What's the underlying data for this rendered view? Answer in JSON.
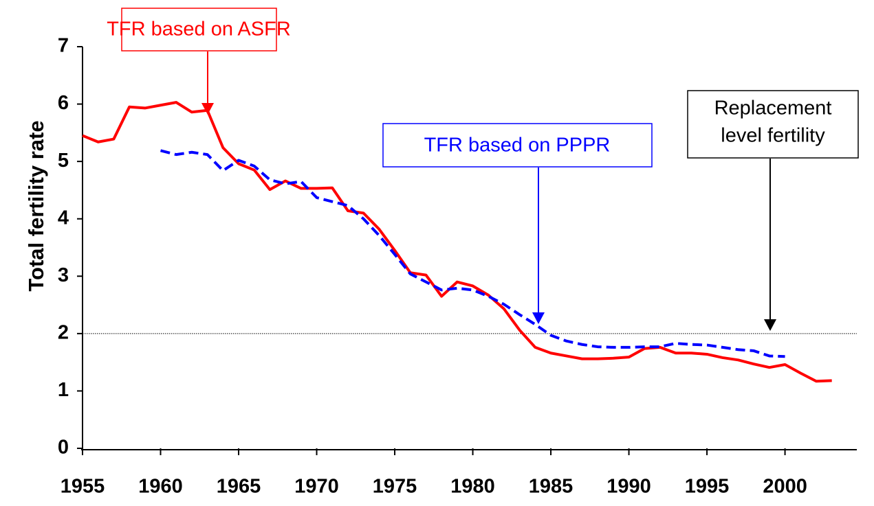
{
  "chart_data": {
    "type": "line",
    "y_label": "Total fertility rate",
    "xlim": [
      1955,
      2004.6
    ],
    "xticks": [
      1955,
      1960,
      1965,
      1970,
      1975,
      1980,
      1985,
      1990,
      1995,
      2000
    ],
    "ylim": [
      0,
      7
    ],
    "yticks": [
      0,
      1,
      2,
      3,
      4,
      5,
      6,
      7
    ],
    "reference_line": 2,
    "series": [
      {
        "color": "#ff0000",
        "dash": false,
        "x": [
          1955,
          1956,
          1957,
          1958,
          1959,
          1960,
          1961,
          1962,
          1963,
          1964,
          1965,
          1966,
          1967,
          1968,
          1969,
          1970,
          1971,
          1972,
          1973,
          1974,
          1975,
          1976,
          1977,
          1978,
          1979,
          1980,
          1981,
          1982,
          1983,
          1984,
          1985,
          1986,
          1987,
          1988,
          1989,
          1990,
          1991,
          1992,
          1993,
          1994,
          1995,
          1996,
          1997,
          1998,
          1999,
          2000,
          2001,
          2002,
          2003
        ],
        "values": [
          5.45,
          5.34,
          5.39,
          5.95,
          5.93,
          5.98,
          6.03,
          5.86,
          5.89,
          5.24,
          4.96,
          4.85,
          4.51,
          4.66,
          4.53,
          4.53,
          4.54,
          4.14,
          4.1,
          3.82,
          3.45,
          3.06,
          3.02,
          2.65,
          2.9,
          2.83,
          2.67,
          2.43,
          2.06,
          1.76,
          1.66,
          1.61,
          1.56,
          1.56,
          1.57,
          1.59,
          1.74,
          1.76,
          1.66,
          1.66,
          1.64,
          1.58,
          1.54,
          1.47,
          1.41,
          1.46,
          1.31,
          1.17,
          1.18
        ]
      },
      {
        "color": "#0000ff",
        "dash": true,
        "x": [
          1960,
          1961,
          1962,
          1963,
          1964,
          1965,
          1966,
          1967,
          1968,
          1969,
          1970,
          1971,
          1972,
          1973,
          1974,
          1975,
          1976,
          1977,
          1978,
          1979,
          1980,
          1981,
          1982,
          1983,
          1984,
          1985,
          1986,
          1987,
          1988,
          1989,
          1990,
          1991,
          1992,
          1993,
          1994,
          1995,
          1996,
          1997,
          1998,
          1999,
          2000
        ],
        "values": [
          5.19,
          5.12,
          5.16,
          5.12,
          4.84,
          5.02,
          4.92,
          4.68,
          4.61,
          4.65,
          4.37,
          4.3,
          4.23,
          4.0,
          3.71,
          3.38,
          3.04,
          2.9,
          2.76,
          2.79,
          2.76,
          2.65,
          2.51,
          2.33,
          2.16,
          1.97,
          1.87,
          1.81,
          1.77,
          1.76,
          1.76,
          1.77,
          1.77,
          1.83,
          1.81,
          1.8,
          1.76,
          1.72,
          1.7,
          1.61,
          1.6
        ]
      }
    ],
    "annotations": [
      "TFR based on ASFR",
      "TFR based on PPPR",
      [
        "Replacement",
        "level fertility"
      ]
    ]
  }
}
